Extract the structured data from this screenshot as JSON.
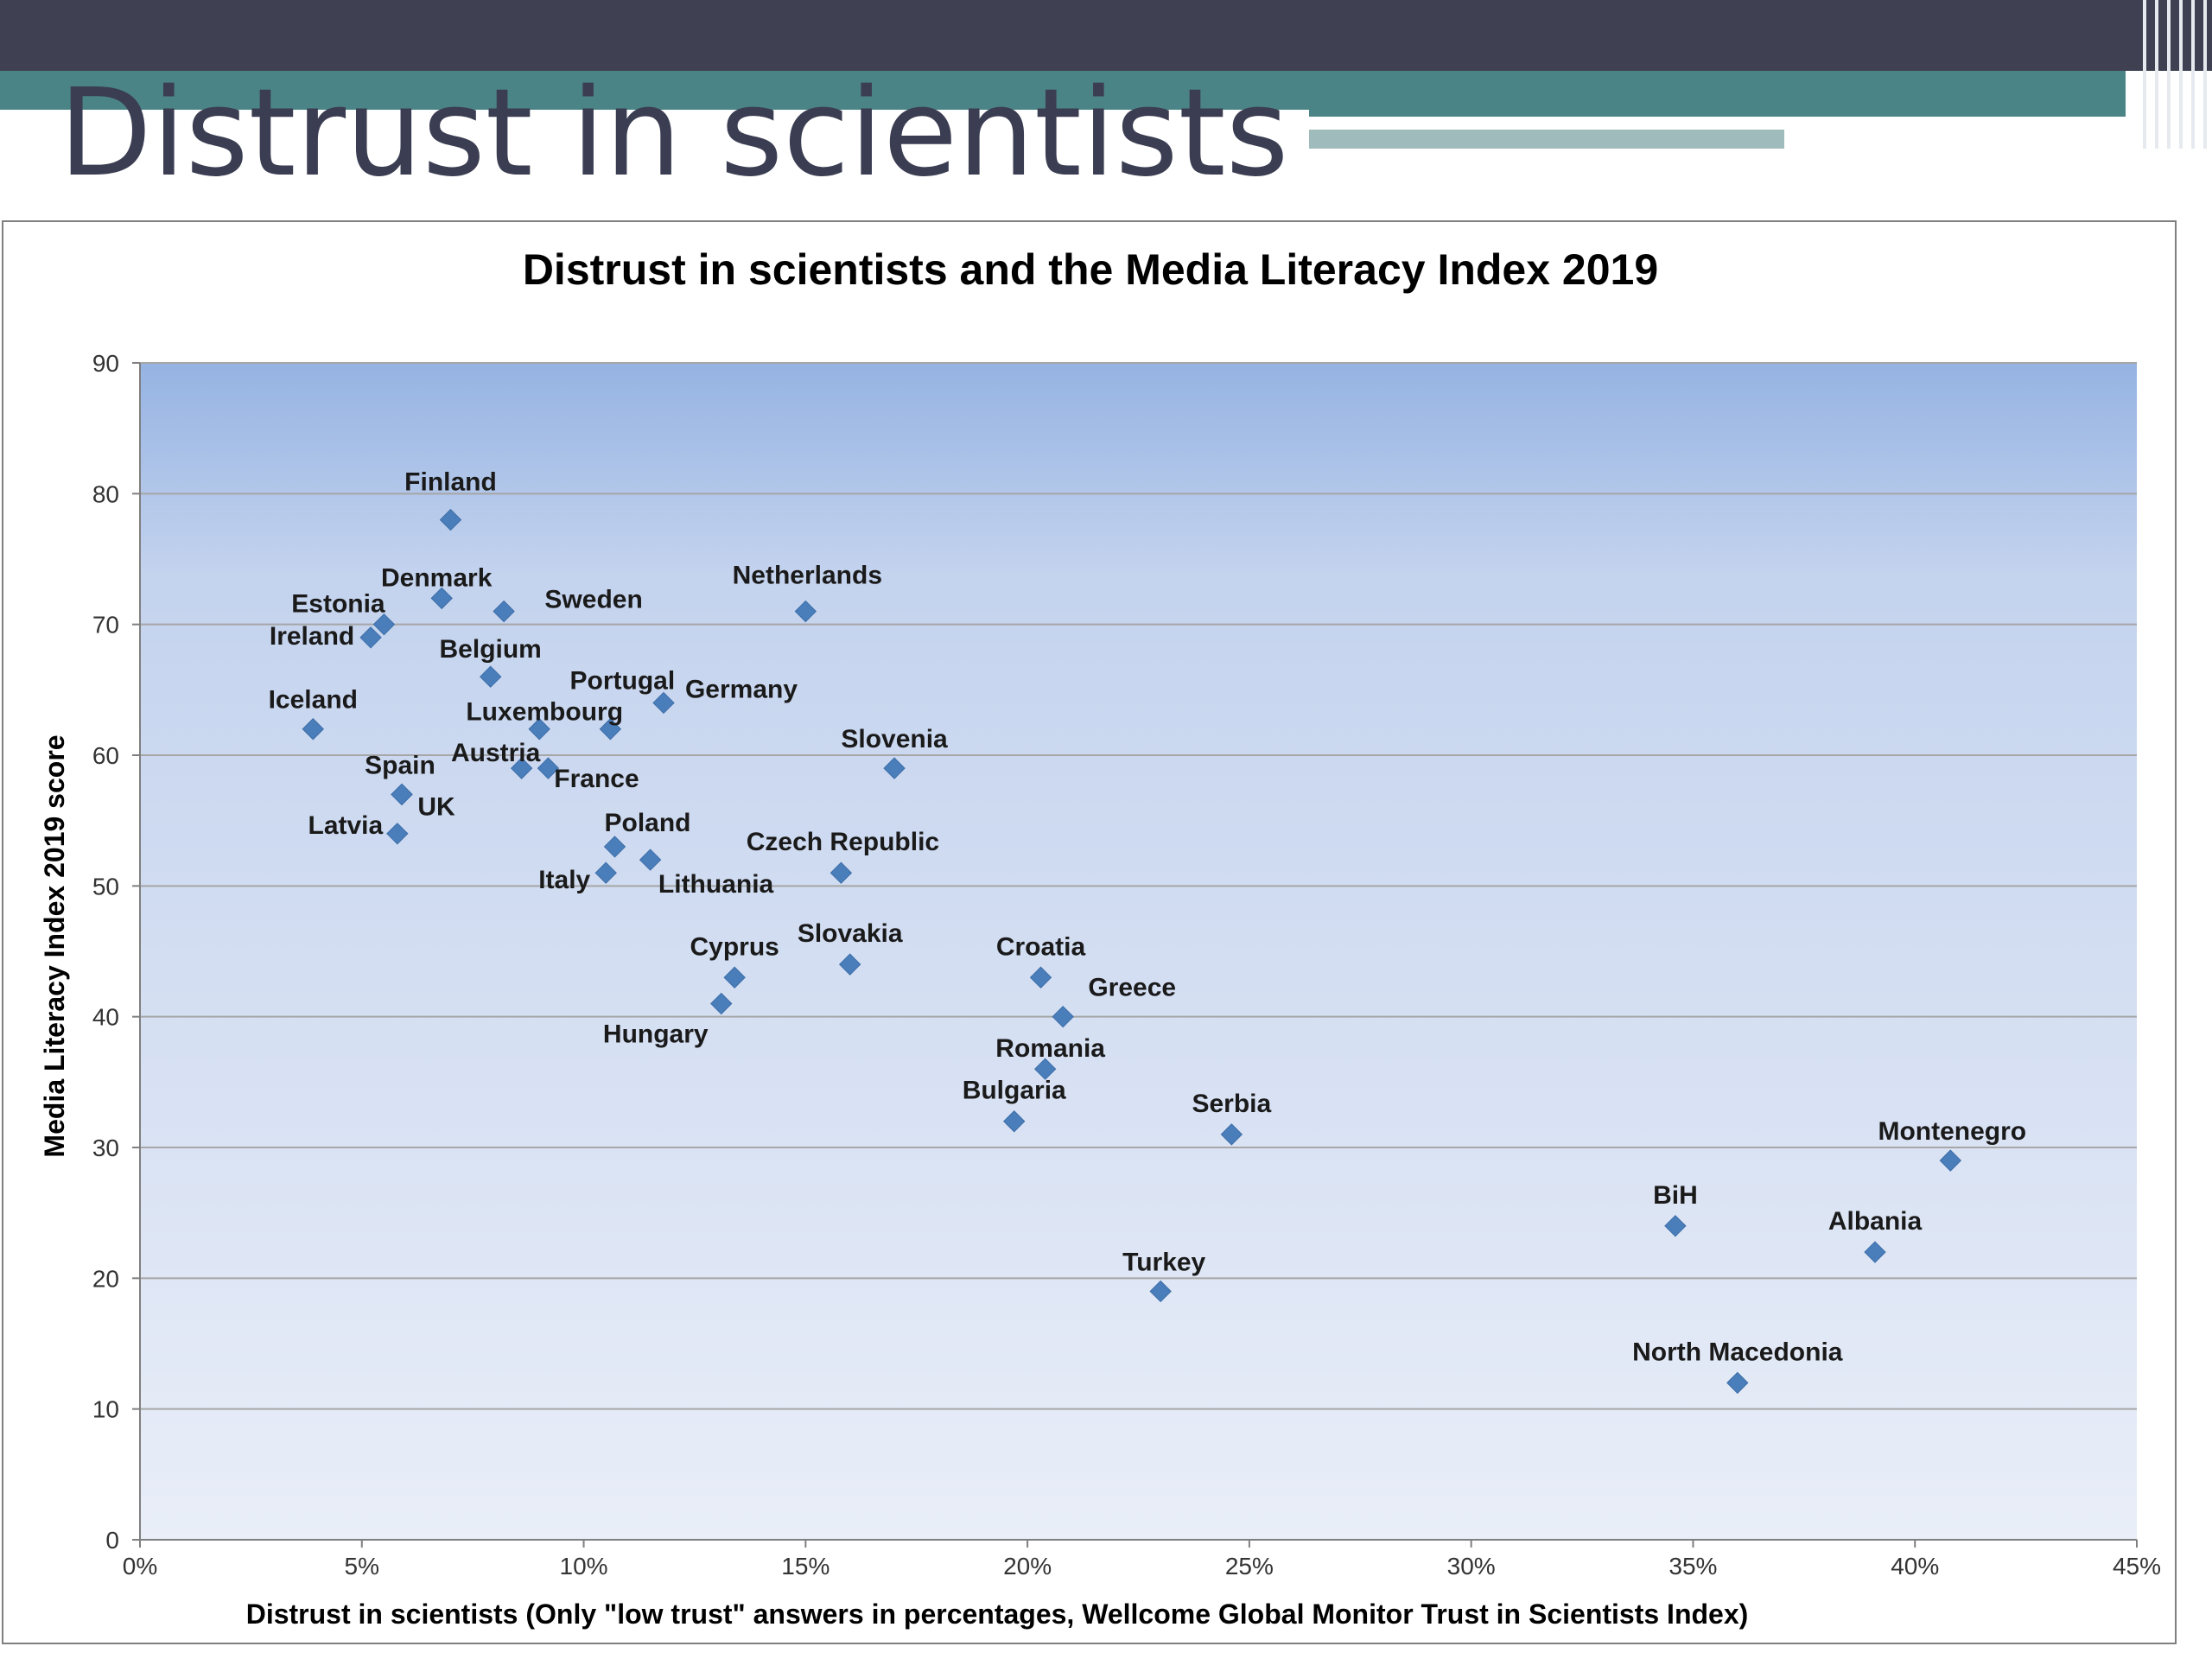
{
  "slide": {
    "title": "Distrust in scientists"
  },
  "colors": {
    "topbar": "#3f4152",
    "teal": "#4b8487",
    "marker": "#4a7ebb",
    "plot_top": "#95b3e2",
    "plot_bottom": "#e9eef8",
    "gridline": "#a6a6a6",
    "title_text": "#3b3e52"
  },
  "chart_data": {
    "type": "scatter",
    "title": "Distrust in scientists and the Media Literacy Index 2019",
    "xlabel": "Distrust in scientists (Only \"low trust\" answers in percentages, Wellcome Global Monitor Trust in Scientists Index)",
    "ylabel": "Media Literacy Index 2019 score",
    "xlim": [
      0,
      45
    ],
    "ylim": [
      0,
      90
    ],
    "x_unit": "%",
    "x_ticks": [
      "0%",
      "5%",
      "10%",
      "15%",
      "20%",
      "25%",
      "30%",
      "35%",
      "40%",
      "45%"
    ],
    "y_ticks": [
      "0",
      "10",
      "20",
      "30",
      "40",
      "50",
      "60",
      "70",
      "80",
      "90"
    ],
    "grid": true,
    "legend": "none",
    "points": [
      {
        "label": "Finland",
        "x": 7.0,
        "y": 78
      },
      {
        "label": "Denmark",
        "x": 6.8,
        "y": 72
      },
      {
        "label": "Estonia",
        "x": 5.5,
        "y": 70
      },
      {
        "label": "Ireland",
        "x": 5.2,
        "y": 69
      },
      {
        "label": "Sweden",
        "x": 8.2,
        "y": 71
      },
      {
        "label": "Netherlands",
        "x": 15.0,
        "y": 71
      },
      {
        "label": "Belgium",
        "x": 7.9,
        "y": 66
      },
      {
        "label": "Iceland",
        "x": 3.9,
        "y": 62
      },
      {
        "label": "Portugal",
        "x": 10.6,
        "y": 62
      },
      {
        "label": "Germany",
        "x": 11.8,
        "y": 64
      },
      {
        "label": "Luxembourg",
        "x": 9.0,
        "y": 62
      },
      {
        "label": "Austria",
        "x": 8.6,
        "y": 59
      },
      {
        "label": "France",
        "x": 9.2,
        "y": 59
      },
      {
        "label": "Slovenia",
        "x": 17.0,
        "y": 59
      },
      {
        "label": "Spain",
        "x": 5.9,
        "y": 57
      },
      {
        "label": "UK",
        "x": 5.9,
        "y": 57
      },
      {
        "label": "Latvia",
        "x": 5.8,
        "y": 54
      },
      {
        "label": "Poland",
        "x": 10.7,
        "y": 53
      },
      {
        "label": "Lithuania",
        "x": 11.5,
        "y": 52
      },
      {
        "label": "Italy",
        "x": 10.5,
        "y": 51
      },
      {
        "label": "Czech Republic",
        "x": 15.8,
        "y": 51
      },
      {
        "label": "Cyprus",
        "x": 13.4,
        "y": 43
      },
      {
        "label": "Hungary",
        "x": 13.1,
        "y": 41
      },
      {
        "label": "Slovakia",
        "x": 16.0,
        "y": 44
      },
      {
        "label": "Croatia",
        "x": 20.3,
        "y": 43
      },
      {
        "label": "Greece",
        "x": 20.8,
        "y": 40
      },
      {
        "label": "Romania",
        "x": 20.4,
        "y": 36
      },
      {
        "label": "Bulgaria",
        "x": 19.7,
        "y": 32
      },
      {
        "label": "Serbia",
        "x": 24.6,
        "y": 31
      },
      {
        "label": "Turkey",
        "x": 23.0,
        "y": 19
      },
      {
        "label": "BiH",
        "x": 34.6,
        "y": 24
      },
      {
        "label": "Albania",
        "x": 39.1,
        "y": 22
      },
      {
        "label": "Montenegro",
        "x": 40.8,
        "y": 29
      },
      {
        "label": "North Macedonia",
        "x": 36.0,
        "y": 12
      }
    ]
  }
}
